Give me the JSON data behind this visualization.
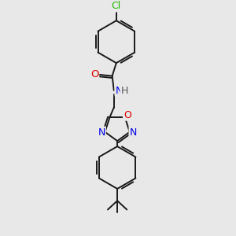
{
  "bg_color": "#e8e8e8",
  "bond_color": "#1a1a1a",
  "bond_width": 1.4,
  "atom_colors": {
    "C": "#1a1a1a",
    "N": "#0000ee",
    "O": "#dd0000",
    "Cl": "#22bb00",
    "H": "#555555"
  },
  "font_size": 8.5,
  "fig_size": [
    3.0,
    3.0
  ],
  "dpi": 100
}
